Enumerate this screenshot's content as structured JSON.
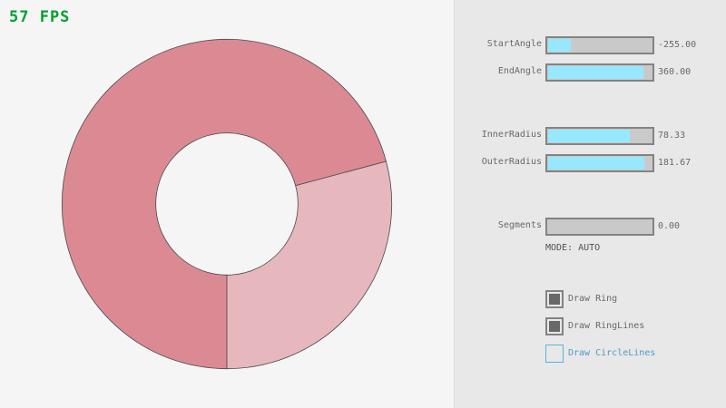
{
  "fps": "57 FPS",
  "ring": {
    "start_angle": -255.0,
    "end_angle": 360.0,
    "inner_radius": 78.33,
    "outer_radius": 181.67,
    "segments": 0,
    "colors": {
      "ring": "#db8a93",
      "ring_light": "#e6b7bd",
      "outline": "#4a4a4a"
    }
  },
  "controls": {
    "sliders": [
      {
        "label": "StartAngle",
        "value": "-255.00",
        "fraction": 0.22
      },
      {
        "label": "EndAngle",
        "value": "360.00",
        "fraction": 0.92
      },
      {
        "label": "InnerRadius",
        "value": "78.33",
        "fraction": 0.79
      },
      {
        "label": "OuterRadius",
        "value": "181.67",
        "fraction": 0.93
      },
      {
        "label": "Segments",
        "value": "0.00",
        "fraction": 0
      }
    ],
    "mode": "MODE: AUTO",
    "checkboxes": [
      {
        "label": "Draw Ring",
        "checked": true
      },
      {
        "label": "Draw RingLines",
        "checked": true
      },
      {
        "label": "Draw CircleLines",
        "checked": false
      }
    ],
    "accent": "#97e8ff"
  }
}
